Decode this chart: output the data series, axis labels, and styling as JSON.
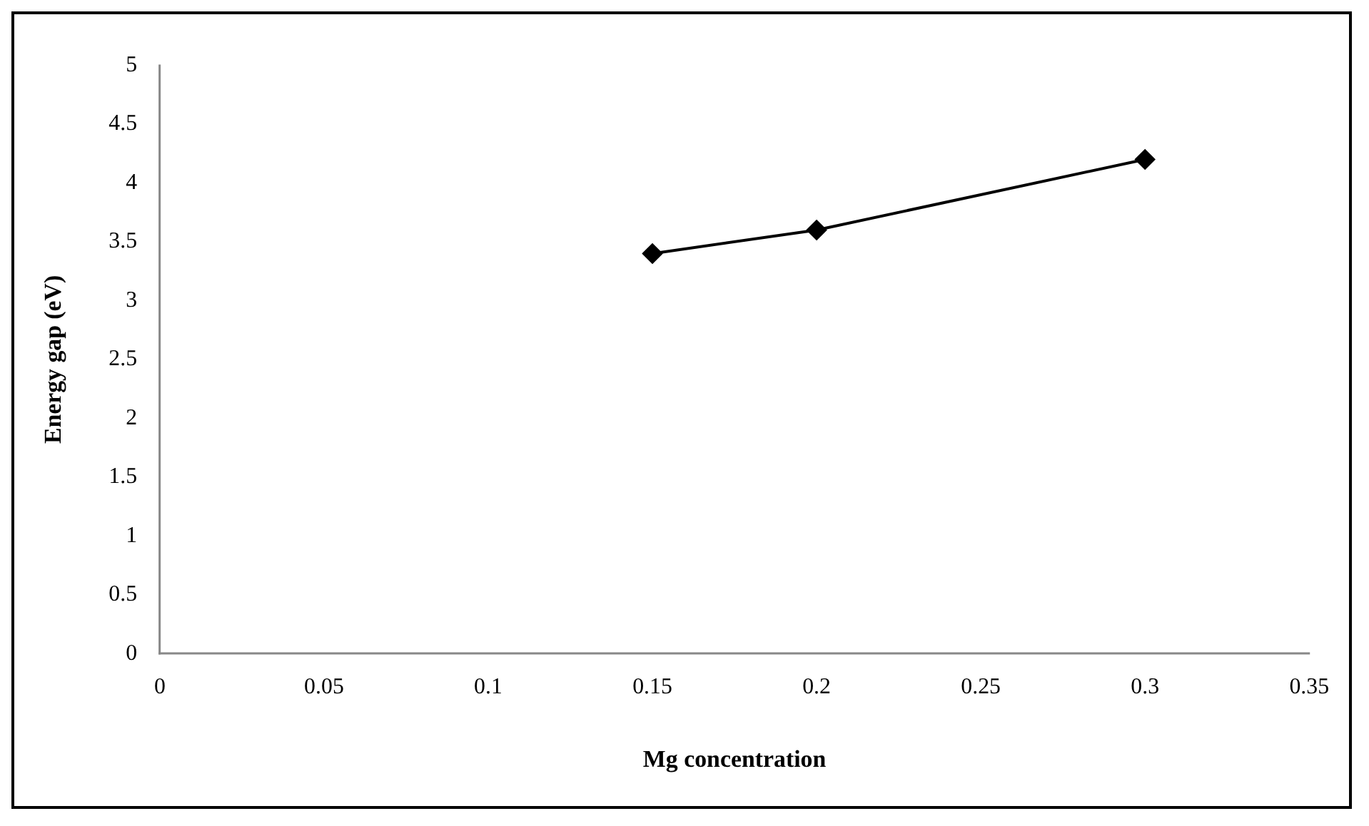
{
  "chart_data": {
    "type": "line",
    "xlabel": "Mg concentration",
    "ylabel": "Energy gap (eV)",
    "x": [
      0.15,
      0.2,
      0.3
    ],
    "series": [
      {
        "color": "#000000",
        "values": [
          3.4,
          3.6,
          4.2
        ]
      }
    ],
    "xlim": [
      0,
      0.35
    ],
    "xticks": [
      0,
      0.05,
      0.1,
      0.15,
      0.2,
      0.25,
      0.3,
      0.35
    ],
    "ylim": [
      0,
      5
    ],
    "yticks": [
      0,
      0.5,
      1,
      1.5,
      2,
      2.5,
      3,
      3.5,
      4,
      4.5,
      5
    ],
    "grid": false,
    "legend": false,
    "marker": "diamond",
    "line_style": "solid"
  }
}
